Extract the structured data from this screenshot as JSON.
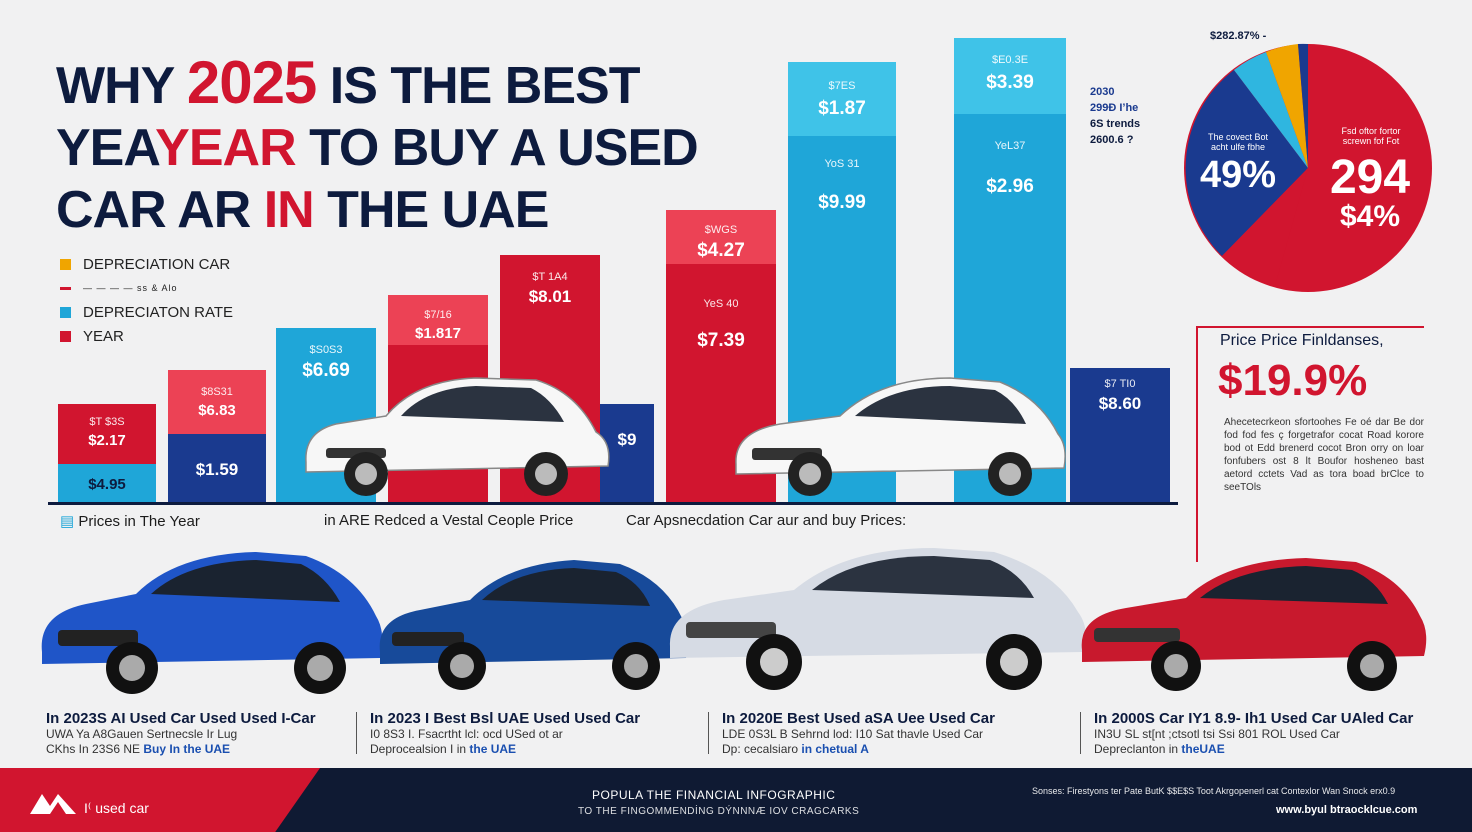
{
  "title": {
    "line1_a": "WHY ",
    "line1_red": "2025",
    "line1_b": " IS THE BEST",
    "line2_a": "YEA",
    "line2_red": "YEAR",
    "line2_b": " TO BUY A USED",
    "line3_a": "CAR AR ",
    "line3_red": "IN",
    "line3_b": " THE UAE"
  },
  "legend": [
    {
      "label": "DEPRECIATION CAR",
      "color": "#f0a500"
    },
    {
      "label": "— —  — — ss & Alo",
      "color": "#d1152f"
    },
    {
      "label": "DEPRECIATON RATE",
      "color": "#1fa6d8"
    },
    {
      "label": "YEAR",
      "color": "#d1152f"
    }
  ],
  "colors": {
    "red": "#d1152f",
    "lightred": "#ec4255",
    "cyan": "#1fa6d8",
    "navy": "#1a3a8f",
    "dark": "#0d1b3e"
  },
  "chart_data": {
    "type": "bar",
    "bars": [
      {
        "label_top": "$T $3S",
        "label_mid": "$2.17",
        "value": "$4.95"
      },
      {
        "label_top": "$8S31",
        "label_mid": "$6.83",
        "value": "$1.59"
      },
      {
        "label_top": "$S0S3",
        "label_mid": "",
        "value": "$6.69"
      },
      {
        "label_top": "$7/16",
        "label_mid": "$1.817",
        "value": "$9"
      },
      {
        "label_top": "$T 1A4",
        "label_mid": "",
        "value": "$8.01"
      },
      {
        "label_top": "$WGS",
        "label_mid": "YeS 40",
        "value": "$4.27"
      },
      {
        "label_top": "$7.39",
        "label_mid": "",
        "value": "$7.39"
      },
      {
        "label_top": "$7ES",
        "label_mid": "YoS 31",
        "value": "$1.87"
      },
      {
        "label_top": "$9.99",
        "label_mid": "",
        "value": "$9.99"
      },
      {
        "label_top": "$E0.3E",
        "label_mid": "YeL37",
        "value": "$3.39"
      },
      {
        "label_top": "$2.96",
        "label_mid": "",
        "value": "$2.96"
      },
      {
        "label_top": "$7 TI0",
        "label_mid": "",
        "value": "$8.60"
      }
    ]
  },
  "captions": {
    "c1": "Prices in The Year",
    "c2": "in ARE  Redced a Vestal Ceople Price",
    "c3": "Car Apsnecdation Car aur and buy Prices:"
  },
  "annotations": {
    "a2030": "2030",
    "a2": "299Đ I’he",
    "a3": "6S trends",
    "a4": "2600.6 ?"
  },
  "pie": {
    "top_label": "$282.87% -",
    "left_small": "The covect Bot\nacht ulfe fbhe",
    "left_big": "49%",
    "right_small": "Fsd oftor fortor\nscrewn fof Fot",
    "right_big1": "294",
    "right_big2": "$4%"
  },
  "side": {
    "heading": "Price Price Finldanses,",
    "big": "$19.9%",
    "body": "Ahecetecrkeon sfortoohes Fe oé dar Be dor fod fod fes ç forgetrafor cocat Road korore bod ot Edd brenerd cocot Bron orry on loar fonfubers ost 8 lt Boufor hosheneo bast aetord cctets Vad as tora boad brClce to seeTOls"
  },
  "cars": [
    {
      "h": "In 2023S AI Used Car Used Used I-Car",
      "l1": "UWA Ya A8Gauen Sertnecsle Ir Lug",
      "l2a": "CKhs In 23S6 NE ",
      "l2b": "Buy In the UAE"
    },
    {
      "h": "In 2023 I Best  Bsl UAE Used Used Car",
      "l1": "I0 8S3 I. Fsacrtht lcl: ocd USed ot ar",
      "l2a": "Deprocealsion I in ",
      "l2b": "the UAE"
    },
    {
      "h": "In 2020E Best Used aSA Uee Used Car",
      "l1": "LDE 0S3L B Sehrnd lod: I10 Sat thavle Used Car",
      "l2a": "Dp: cecalsiaro ",
      "l2b": "in chetual A"
    },
    {
      "h": "In 2000S Car IY1 8.9- Ih1 Used Car UAled Car",
      "l1": "IN3U SL st[nt ;ctsotl tsi Ssi 801 ROL Used Car",
      "l2a": "Depreclanton in ",
      "l2b": "theUAE"
    }
  ],
  "footer": {
    "brand": "I⁽ used car",
    "mid1": "POPULA THE FINANCIAL INFOGRAPHIC",
    "mid2": "TO THE FINGOMMENDİNG DÝNNNÆ IOV CRAGCARKS",
    "right1": "Sonses: Firestyons ter Pate ButK $$E$S Toot Akrgopenerl cat Contexlor Wan Snock erx0.9",
    "right2": "www.byul btraocklcue.com"
  }
}
